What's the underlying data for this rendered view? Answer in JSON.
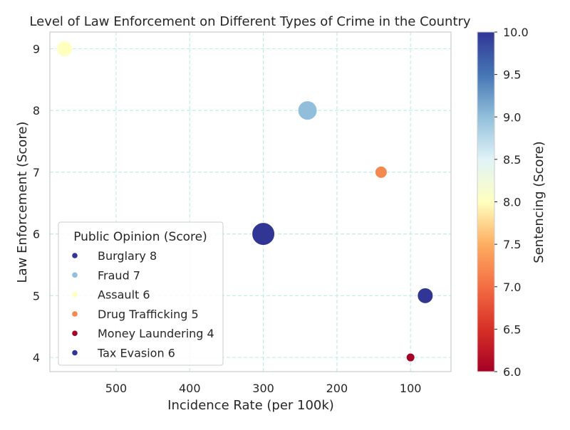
{
  "chart_data": {
    "type": "scatter",
    "title": "Level of Law Enforcement on Different Types of Crime in the Country",
    "xlabel": "Incidence Rate (per 100k)",
    "ylabel": "Law Enforcement (Score)",
    "x_inverted": true,
    "xlim": [
      590,
      45
    ],
    "ylim": [
      3.77,
      9.27
    ],
    "xticks": [
      500,
      400,
      300,
      200,
      100
    ],
    "yticks": [
      4,
      5,
      6,
      7,
      8,
      9
    ],
    "grid": true,
    "legend_title": "Public Opinion (Score)",
    "legend_position": "lower-left",
    "colorbar": {
      "label": "Sentencing (Score)",
      "range": [
        6.0,
        10.0
      ],
      "ticks": [
        6.0,
        6.5,
        7.0,
        7.5,
        8.0,
        8.5,
        9.0,
        9.5,
        10.0
      ],
      "tick_labels": [
        "6.0",
        "6.5",
        "7.0",
        "7.5",
        "8.0",
        "8.5",
        "9.0",
        "9.5",
        "10.0"
      ],
      "colormap": "RdYlBu"
    },
    "points": [
      {
        "label": "Burglary 8",
        "crime": "Burglary",
        "x": 300,
        "y": 6,
        "sentencing": 10.0,
        "public_opinion": 8,
        "color": "#313695"
      },
      {
        "label": "Fraud 7",
        "crime": "Fraud",
        "x": 240,
        "y": 8,
        "sentencing": 9.0,
        "public_opinion": 7,
        "color": "#91bfdb"
      },
      {
        "label": "Assault 6",
        "crime": "Assault",
        "x": 570,
        "y": 9,
        "sentencing": 8.0,
        "public_opinion": 6,
        "color": "#ffffbf"
      },
      {
        "label": "Drug Trafficking 5",
        "crime": "Drug Trafficking",
        "x": 140,
        "y": 7,
        "sentencing": 7.0,
        "public_opinion": 5,
        "color": "#f4894f"
      },
      {
        "label": "Money Laundering 4",
        "crime": "Money Laundering",
        "x": 100,
        "y": 4,
        "sentencing": 6.0,
        "public_opinion": 4,
        "color": "#a50026"
      },
      {
        "label": "Tax Evasion 6",
        "crime": "Tax Evasion",
        "x": 80,
        "y": 5,
        "sentencing": 10.0,
        "public_opinion": 6,
        "color": "#313695"
      }
    ]
  }
}
